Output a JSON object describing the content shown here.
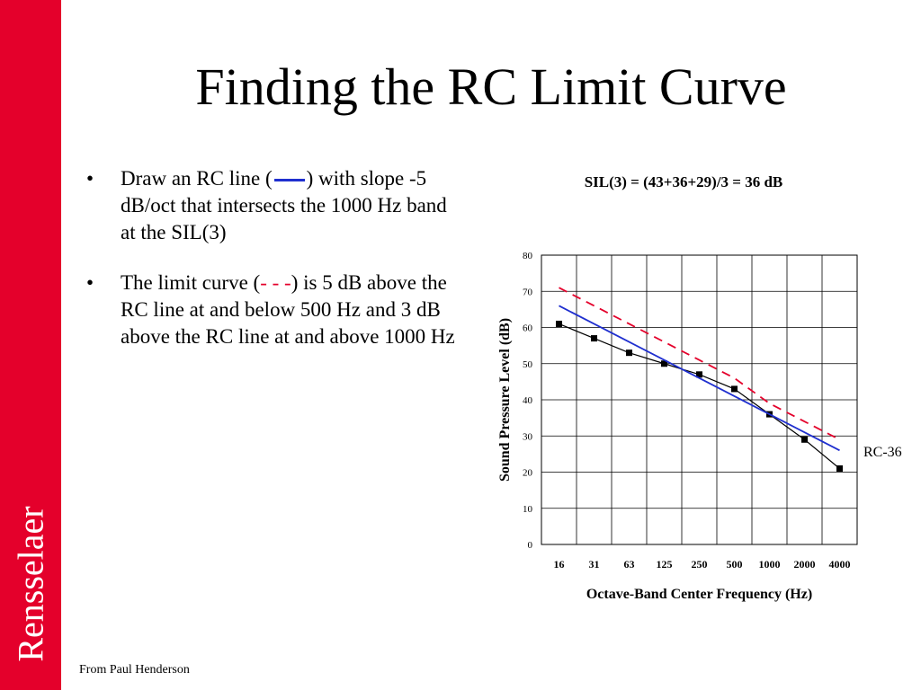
{
  "sidebar": {
    "label": "Rensselaer",
    "color": "#e4002b"
  },
  "title": "Finding the RC Limit Curve",
  "bullets": {
    "b1": {
      "before": "Draw an RC line (",
      "after": ") with slope -5 dB/oct that intersects the 1000 Hz band at the SIL(3)"
    },
    "b2": {
      "before": "The limit curve (",
      "dash": "- - -",
      "after": ") is 5 dB above the RC line at and below 500 Hz and 3 dB above the RC line at and above 1000 Hz"
    }
  },
  "sil_text": "SIL(3) = (43+36+29)/3 = 36 dB",
  "rc_label": "RC-36",
  "credit": "From Paul Henderson",
  "chart_data": {
    "type": "line",
    "categories": [
      "16",
      "31",
      "63",
      "125",
      "250",
      "500",
      "1000",
      "2000",
      "4000"
    ],
    "xlabel": "Octave-Band Center Frequency (Hz)",
    "ylabel": "Sound Pressure Level (dB)",
    "ylim": [
      0,
      80
    ],
    "yticks": [
      0,
      10,
      20,
      30,
      40,
      50,
      60,
      70,
      80
    ],
    "grid": true,
    "series": [
      {
        "values": [
          61,
          57,
          53,
          50,
          47,
          43,
          36,
          29,
          21
        ],
        "color": "#000000",
        "style": "solid-square-markers"
      },
      {
        "values": [
          66,
          61,
          56,
          51,
          46,
          41,
          36,
          31,
          26
        ],
        "color": "#1f2fcf",
        "style": "solid"
      },
      {
        "values": [
          71,
          66,
          61,
          56,
          51,
          46,
          39,
          34,
          29
        ],
        "color": "#e4002b",
        "style": "dashed"
      }
    ]
  }
}
